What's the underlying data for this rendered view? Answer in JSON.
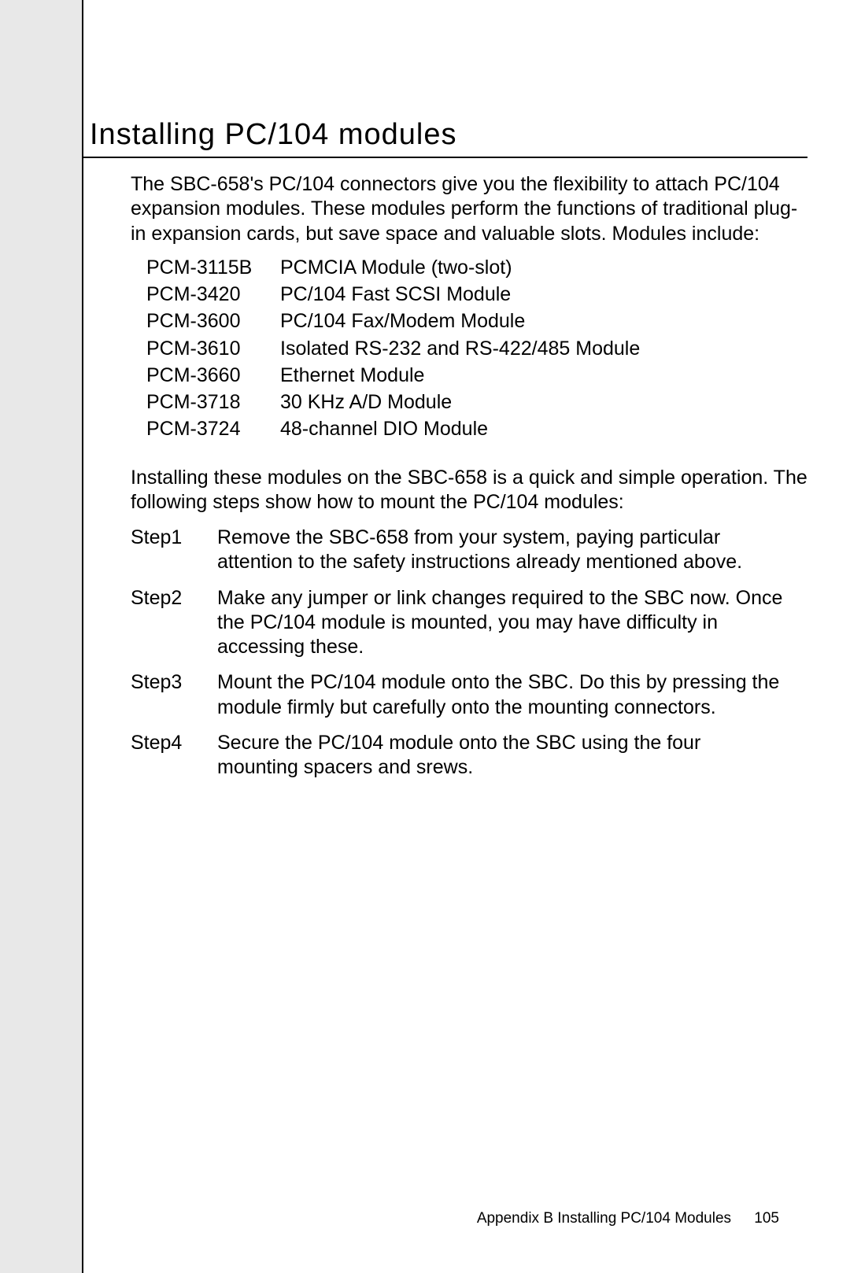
{
  "title": "Installing PC/104 modules",
  "intro": "The SBC-658's PC/104 connectors give you the flexibility to attach PC/104 expansion modules.  These modules perform the functions of traditional plug-in expansion cards, but save space and valuable slots.  Modules include:",
  "modules": [
    {
      "code": "PCM-3115B",
      "desc": "PCMCIA Module (two-slot)"
    },
    {
      "code": "PCM-3420",
      "desc": "PC/104 Fast SCSI Module"
    },
    {
      "code": "PCM-3600",
      "desc": "PC/104 Fax/Modem Module"
    },
    {
      "code": "PCM-3610",
      "desc": "Isolated RS-232 and RS-422/485 Module"
    },
    {
      "code": "PCM-3660",
      "desc": "Ethernet Module"
    },
    {
      "code": "PCM-3718",
      "desc": "30 KHz A/D Module"
    },
    {
      "code": "PCM-3724",
      "desc": "48-channel DIO Module"
    }
  ],
  "para2": "Installing these modules on the SBC-658 is a quick and simple operation. The following steps show how to mount the PC/104 modules:",
  "steps": [
    {
      "label": "Step1",
      "text": "Remove the SBC-658 from your system, paying particular attention to the safety instructions already mentioned above."
    },
    {
      "label": "Step2",
      "text": "Make any jumper or link changes required to the SBC now.  Once the PC/104 module is mounted, you may have difficulty in accessing these."
    },
    {
      "label": "Step3",
      "text": "Mount the PC/104 module onto the SBC.  Do this by pressing the module firmly but carefully onto the mounting connectors."
    },
    {
      "label": "Step4",
      "text": "Secure the PC/104 module onto the SBC using the four mounting spacers and srews."
    }
  ],
  "footer": {
    "text": "Appendix B   Installing PC/104 Modules",
    "page": "105"
  }
}
